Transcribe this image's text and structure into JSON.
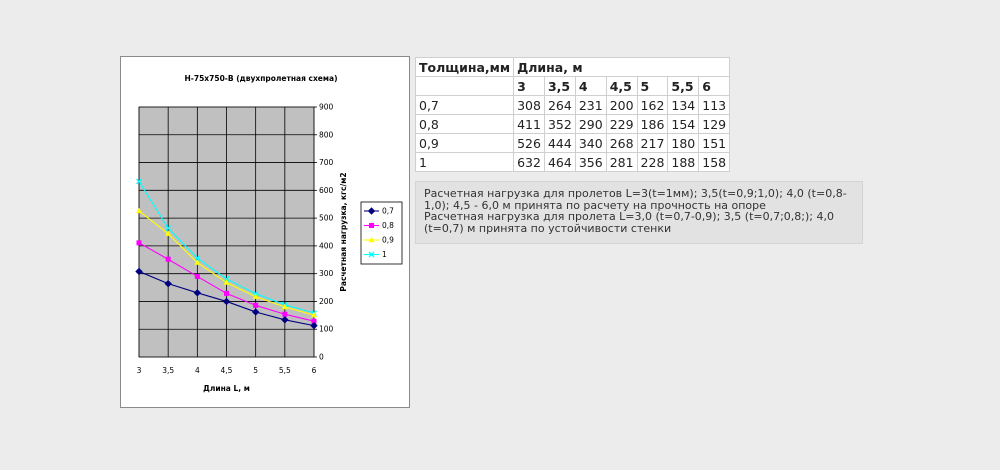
{
  "chart_data": {
    "type": "line",
    "title": "Н-75х750-В (двухпролетная схема)",
    "xlabel": "Длина L, м",
    "ylabel": "Расчетная нагрузка, кгс/м2",
    "x": [
      "3",
      "3,5",
      "4",
      "4,5",
      "5",
      "5,5",
      "6"
    ],
    "x_values": [
      3,
      3.5,
      4,
      4.5,
      5,
      5.5,
      6
    ],
    "ylim": [
      0,
      900
    ],
    "yticks": [
      "0",
      "100",
      "200",
      "300",
      "400",
      "500",
      "600",
      "700",
      "800",
      "900"
    ],
    "grid": true,
    "y_axis_side": "right",
    "legend_position": "right",
    "plot_background": "#c0c0c0",
    "series": [
      {
        "name": "0,7",
        "values": [
          308,
          264,
          231,
          200,
          162,
          134,
          113
        ],
        "color": "#000080",
        "marker": "diamond"
      },
      {
        "name": "0,8",
        "values": [
          411,
          352,
          290,
          229,
          186,
          154,
          129
        ],
        "color": "#ff00ff",
        "marker": "square"
      },
      {
        "name": "0,9",
        "values": [
          526,
          444,
          340,
          268,
          217,
          180,
          151
        ],
        "color": "#ffff00",
        "marker": "triangle"
      },
      {
        "name": "1",
        "values": [
          632,
          464,
          356,
          281,
          228,
          188,
          158
        ],
        "color": "#00ffff",
        "marker": "x"
      }
    ]
  },
  "table": {
    "header": [
      "Толщина,мм",
      "Длина, м"
    ],
    "lengths": [
      "3",
      "3,5",
      "4",
      "4,5",
      "5",
      "5,5",
      "6"
    ],
    "rows": [
      {
        "thickness": "0,7",
        "values": [
          "308",
          "264",
          "231",
          "200",
          "162",
          "134",
          "113"
        ]
      },
      {
        "thickness": "0,8",
        "values": [
          "411",
          "352",
          "290",
          "229",
          "186",
          "154",
          "129"
        ]
      },
      {
        "thickness": "0,9",
        "values": [
          "526",
          "444",
          "340",
          "268",
          "217",
          "180",
          "151"
        ]
      },
      {
        "thickness": "1",
        "values": [
          "632",
          "464",
          "356",
          "281",
          "228",
          "188",
          "158"
        ]
      }
    ]
  },
  "note": {
    "line1": "Расчетная нагрузка для пролетов L=3(t=1мм); 3,5(t=0,9;1,0); 4,0 (t=0,8-1,0); 4,5 - 6,0 м принята по расчету на прочность на опоре",
    "line2": "Расчетная нагрузка для пролета L=3,0 (t=0,7-0,9); 3,5 (t=0,7;0,8;); 4,0 (t=0,7) м принята по устойчивости стенки"
  }
}
